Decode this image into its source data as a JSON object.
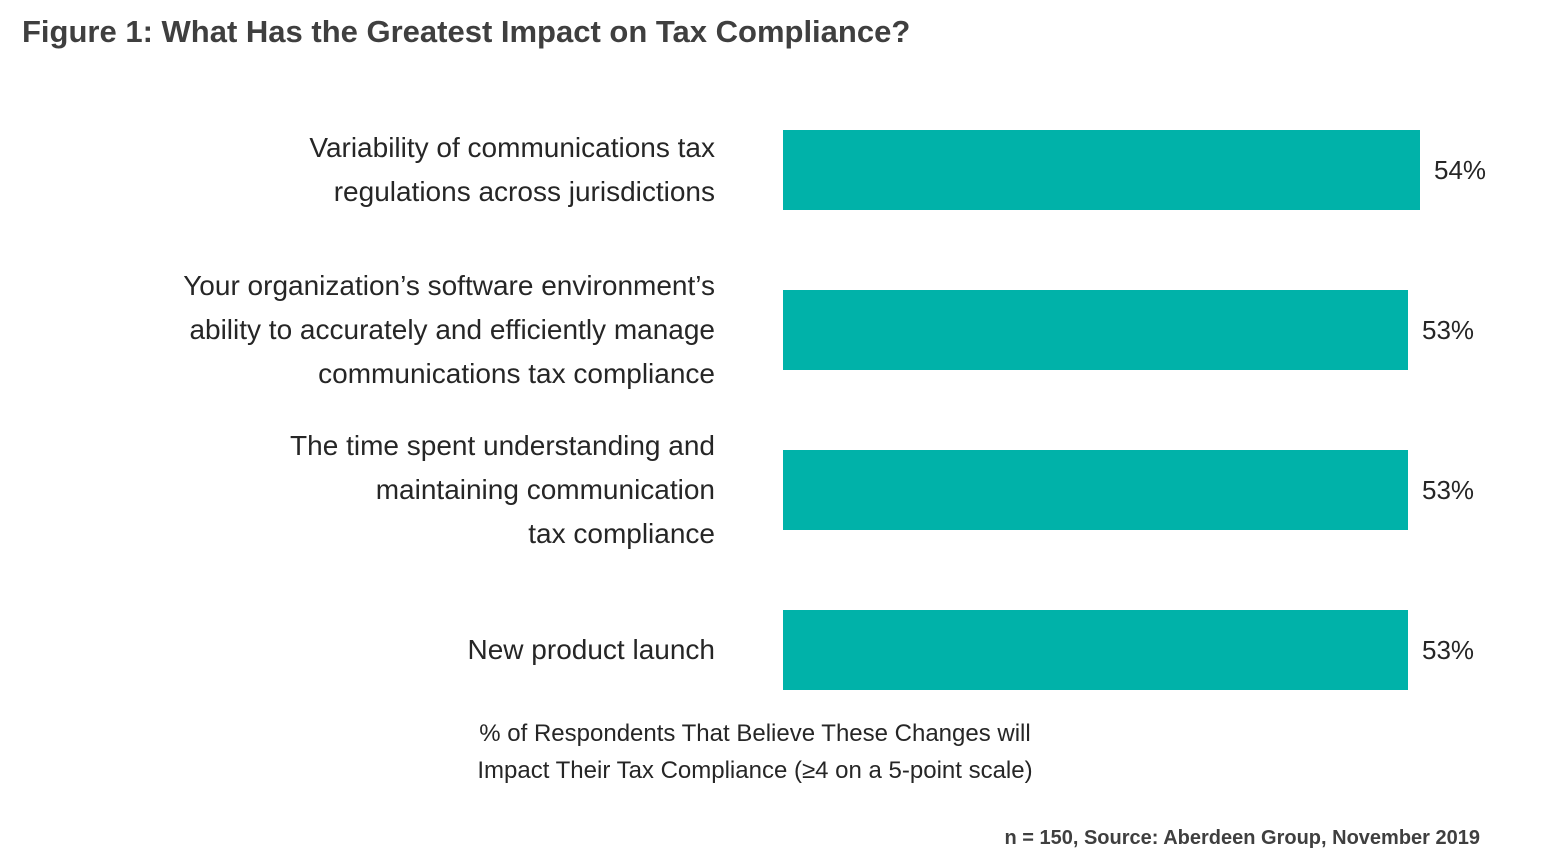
{
  "title": "Figure 1: What Has the Greatest Impact on Tax Compliance?",
  "caption": {
    "text": "% of Respondents That Believe These Changes will\nImpact Their Tax Compliance (≥4 on a 5-point scale)"
  },
  "source_note": "n = 150, Source: Aberdeen Group, November 2019",
  "colors": {
    "bar": "#00B2A9",
    "title_text": "#3f3f3f",
    "label_text": "#262626"
  },
  "chart_data": {
    "type": "bar",
    "orientation": "horizontal",
    "title": "Figure 1: What Has the Greatest Impact on Tax Compliance?",
    "categories": [
      "Variability of communications tax regulations across jurisdictions",
      "Your organization’s software environment’s ability to accurately and efficiently manage communications tax compliance",
      "The time spent understanding and maintaining communication tax compliance",
      "New product launch"
    ],
    "category_lines": [
      [
        "Variability of communications tax",
        "regulations across jurisdictions"
      ],
      [
        "Your organization’s software environment’s",
        "ability to accurately and efficiently manage",
        "communications tax compliance"
      ],
      [
        "The time spent understanding and",
        "maintaining communication",
        "tax compliance"
      ],
      [
        "New product launch"
      ]
    ],
    "values": [
      54,
      53,
      53,
      53
    ],
    "value_labels": [
      "54%",
      "53%",
      "53%",
      "53%"
    ],
    "xlabel": "% of Respondents That Believe These Changes will Impact Their Tax Compliance (≥4 on a 5-point scale)",
    "xlim": [
      0,
      54
    ],
    "axis_visible": false,
    "grid": false,
    "legend": false,
    "bar_color": "#00B2A9",
    "source": "n = 150, Source: Aberdeen Group, November 2019"
  }
}
